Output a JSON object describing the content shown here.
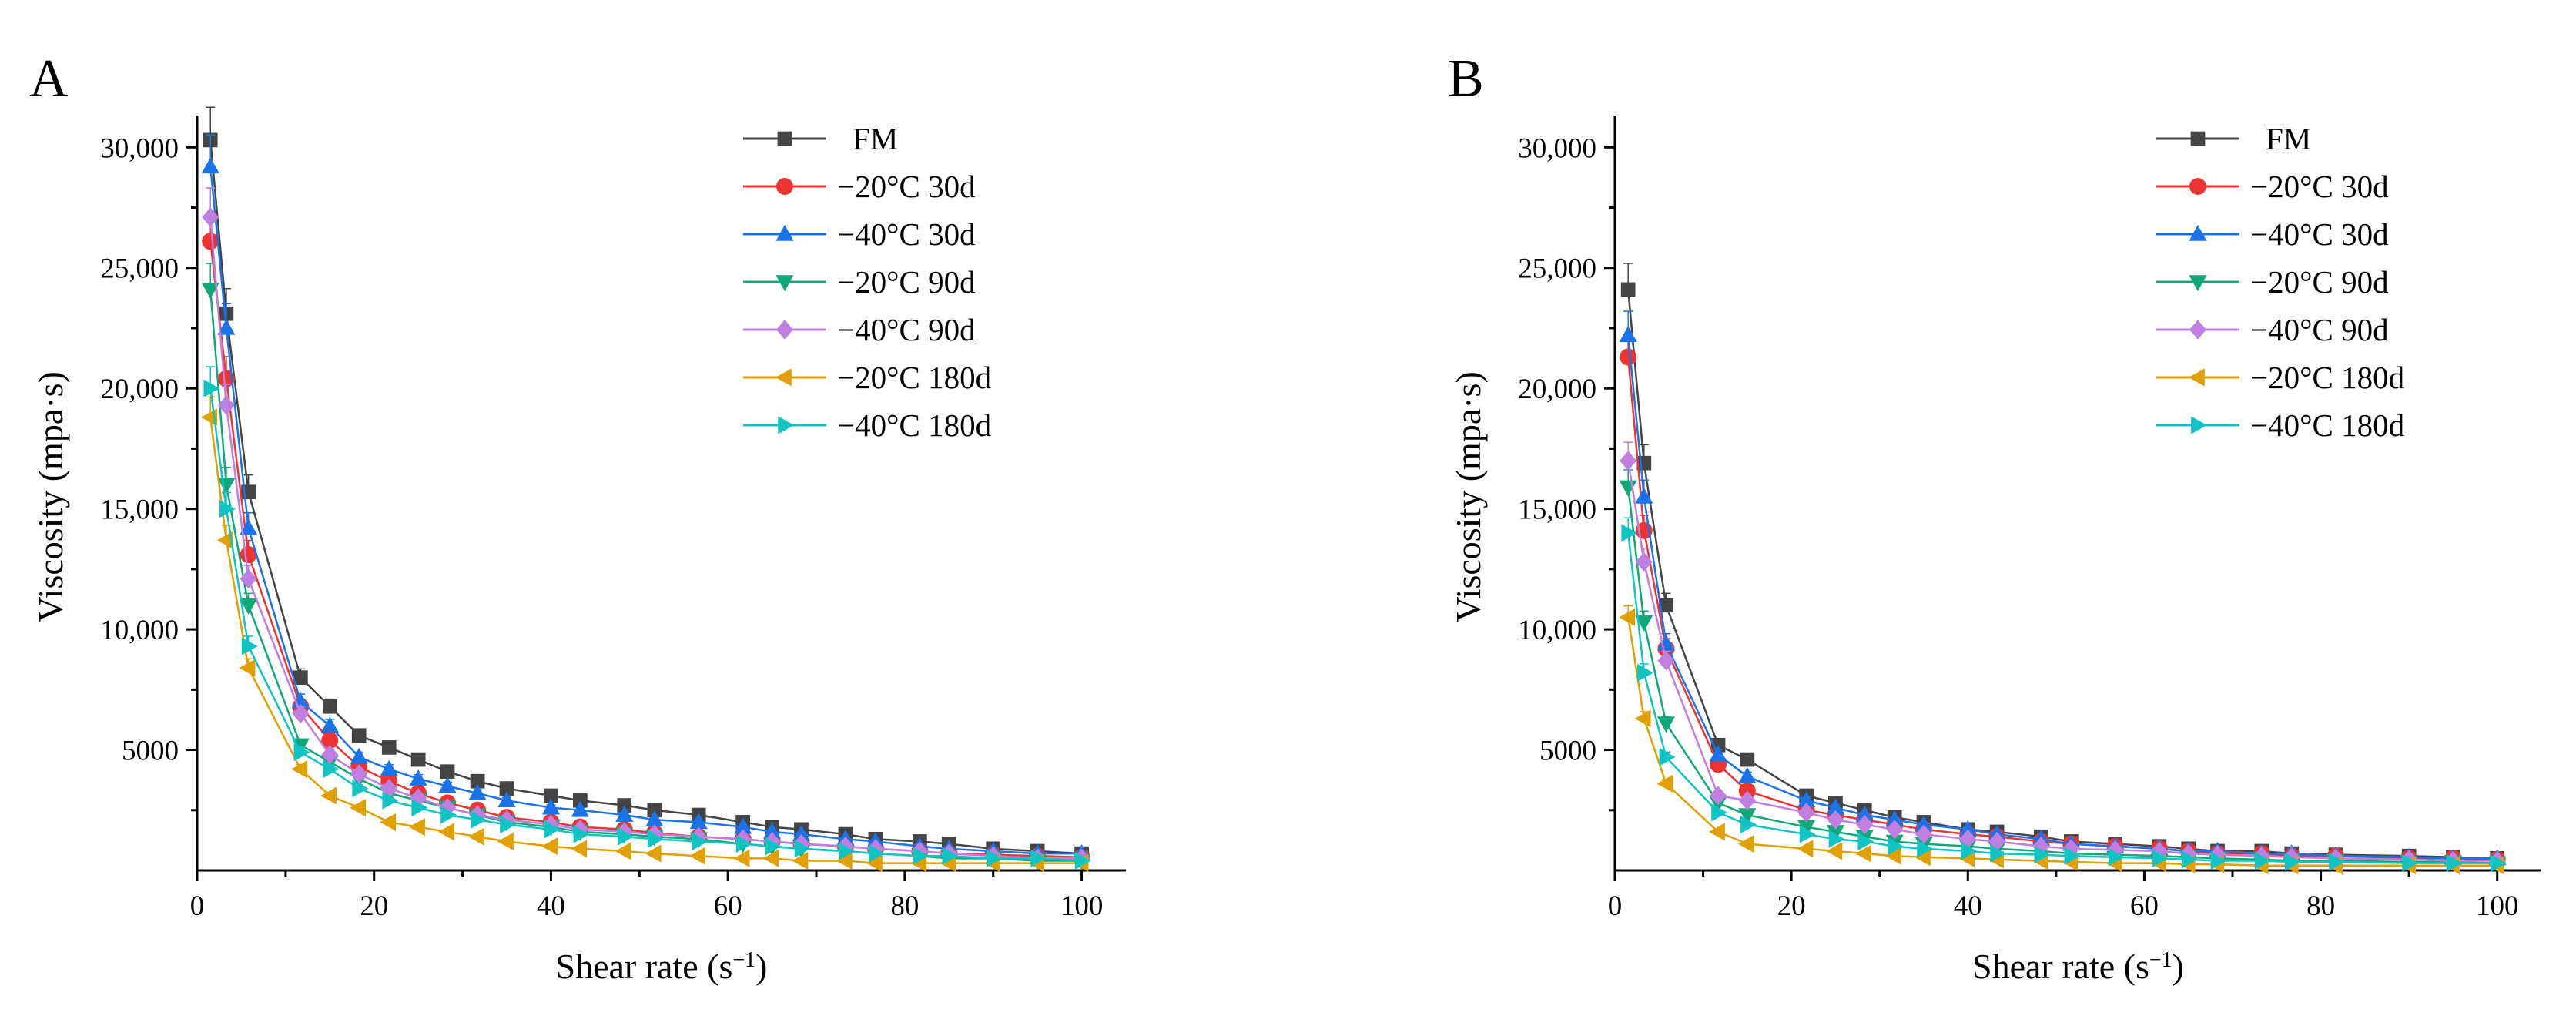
{
  "chart_data": [
    {
      "type": "line",
      "panel_label": "A",
      "xlabel": "Shear rate (s",
      "xlabel_sup": "−1",
      "xlabel_close": ")",
      "ylabel": "Viscosity (mpa·s)",
      "xlim": [
        0,
        105
      ],
      "ylim": [
        0,
        31000
      ],
      "x_ticks": [
        0,
        20,
        40,
        60,
        80,
        100
      ],
      "x_tick_labels": [
        "0",
        "20",
        "40",
        "60",
        "80",
        "100"
      ],
      "y_ticks": [
        5000,
        10000,
        15000,
        20000,
        25000,
        30000
      ],
      "y_tick_labels": [
        "5000",
        "10,000",
        "15,000",
        "20,000",
        "25,000",
        "30,000"
      ],
      "legend_position": "top-right",
      "x": [
        1.5,
        3.3,
        5.8,
        11.7,
        15,
        18.3,
        21.7,
        25,
        28.3,
        31.7,
        35,
        40,
        43.3,
        48.3,
        51.7,
        56.7,
        61.7,
        65,
        68.3,
        73.3,
        76.7,
        81.7,
        85,
        90,
        95,
        100
      ],
      "series": [
        {
          "name": "FM",
          "marker": "square",
          "color": "#444444",
          "values": [
            30300,
            23100,
            15700,
            8000,
            6800,
            5600,
            5100,
            4600,
            4100,
            3700,
            3400,
            3100,
            2900,
            2700,
            2500,
            2300,
            2000,
            1800,
            1700,
            1500,
            1300,
            1200,
            1100,
            900,
            800,
            700
          ]
        },
        {
          "name": "−20°C 30d",
          "marker": "circle",
          "color": "#ee3333",
          "values": [
            26100,
            20400,
            13100,
            6800,
            5400,
            4300,
            3700,
            3200,
            2800,
            2500,
            2200,
            2000,
            1800,
            1700,
            1550,
            1400,
            1300,
            1200,
            1100,
            1000,
            900,
            800,
            700,
            650,
            600,
            550
          ]
        },
        {
          "name": "−40°C 30d",
          "marker": "triangle-up",
          "color": "#1a73e8",
          "values": [
            29200,
            22500,
            14200,
            7000,
            6000,
            4700,
            4200,
            3800,
            3500,
            3200,
            2900,
            2600,
            2500,
            2300,
            2100,
            2000,
            1800,
            1600,
            1500,
            1300,
            1200,
            1000,
            900,
            800,
            700,
            700
          ]
        },
        {
          "name": "−20°C 90d",
          "marker": "triangle-down",
          "color": "#10a878",
          "values": [
            24100,
            16000,
            11000,
            5200,
            4500,
            3800,
            3200,
            2900,
            2600,
            2300,
            2000,
            1800,
            1600,
            1500,
            1400,
            1300,
            1100,
            1000,
            900,
            800,
            700,
            600,
            500,
            500,
            400,
            400
          ]
        },
        {
          "name": "−40°C 90d",
          "marker": "diamond",
          "color": "#c07ee0",
          "values": [
            27100,
            19300,
            12100,
            6500,
            4800,
            4000,
            3400,
            3000,
            2600,
            2300,
            2100,
            1900,
            1700,
            1600,
            1500,
            1400,
            1300,
            1200,
            1100,
            1000,
            900,
            800,
            700,
            600,
            500,
            500
          ]
        },
        {
          "name": "−20°C 180d",
          "marker": "triangle-left",
          "color": "#e0a000",
          "values": [
            18800,
            13700,
            8400,
            4200,
            3100,
            2600,
            2000,
            1800,
            1600,
            1400,
            1200,
            1000,
            900,
            800,
            700,
            600,
            500,
            500,
            400,
            400,
            300,
            300,
            300,
            300,
            300,
            300
          ]
        },
        {
          "name": "−40°C 180d",
          "marker": "triangle-right",
          "color": "#10c4c4",
          "values": [
            20000,
            15000,
            9300,
            4900,
            4200,
            3400,
            2900,
            2600,
            2300,
            2100,
            1900,
            1700,
            1500,
            1400,
            1300,
            1200,
            1100,
            1000,
            900,
            800,
            700,
            600,
            600,
            500,
            500,
            400
          ]
        }
      ]
    },
    {
      "type": "line",
      "panel_label": "B",
      "xlabel": "Shear rate (s",
      "xlabel_sup": "−1",
      "xlabel_close": ")",
      "ylabel": "Viscosity (mpa·s)",
      "xlim": [
        0,
        105
      ],
      "ylim": [
        0,
        31000
      ],
      "x_ticks": [
        0,
        20,
        40,
        60,
        80,
        100
      ],
      "x_tick_labels": [
        "0",
        "20",
        "40",
        "60",
        "80",
        "100"
      ],
      "y_ticks": [
        5000,
        10000,
        15000,
        20000,
        25000,
        30000
      ],
      "y_tick_labels": [
        "5000",
        "10,000",
        "15,000",
        "20,000",
        "25,000",
        "30,000"
      ],
      "legend_position": "top-right",
      "x": [
        1.5,
        3.3,
        5.8,
        11.7,
        15,
        21.7,
        25,
        28.3,
        31.7,
        35,
        40,
        43.3,
        48.3,
        51.7,
        56.7,
        61.7,
        65,
        68.3,
        73.3,
        76.7,
        81.7,
        90,
        95,
        100
      ],
      "series": [
        {
          "name": "FM",
          "marker": "square",
          "color": "#444444",
          "values": [
            24100,
            16900,
            11000,
            5200,
            4600,
            3100,
            2800,
            2500,
            2200,
            2000,
            1700,
            1600,
            1400,
            1200,
            1100,
            1000,
            900,
            800,
            800,
            700,
            650,
            600,
            550,
            500
          ]
        },
        {
          "name": "−20°C 30d",
          "marker": "circle",
          "color": "#ee3333",
          "values": [
            21300,
            14100,
            9200,
            4400,
            3300,
            2500,
            2300,
            2100,
            1900,
            1700,
            1500,
            1400,
            1200,
            1100,
            1000,
            900,
            800,
            700,
            700,
            600,
            600,
            500,
            500,
            450
          ]
        },
        {
          "name": "−40°C 30d",
          "marker": "triangle-up",
          "color": "#1a73e8",
          "values": [
            22200,
            15500,
            9400,
            4800,
            3900,
            2900,
            2600,
            2300,
            2100,
            1900,
            1700,
            1500,
            1300,
            1100,
            1000,
            900,
            800,
            800,
            700,
            700,
            600,
            550,
            500,
            500
          ]
        },
        {
          "name": "−20°C 90d",
          "marker": "triangle-down",
          "color": "#10a878",
          "values": [
            15900,
            10300,
            6100,
            2800,
            2300,
            1800,
            1600,
            1400,
            1200,
            1100,
            1000,
            900,
            800,
            700,
            650,
            600,
            550,
            500,
            450,
            400,
            400,
            350,
            350,
            300
          ]
        },
        {
          "name": "−40°C 90d",
          "marker": "diamond",
          "color": "#c07ee0",
          "values": [
            17000,
            12800,
            8700,
            3100,
            2900,
            2400,
            2100,
            1900,
            1700,
            1500,
            1300,
            1200,
            1000,
            900,
            850,
            800,
            700,
            650,
            600,
            550,
            500,
            450,
            400,
            400
          ]
        },
        {
          "name": "−20°C 180d",
          "marker": "triangle-left",
          "color": "#e0a000",
          "values": [
            10500,
            6300,
            3600,
            1600,
            1100,
            900,
            800,
            700,
            600,
            550,
            500,
            450,
            400,
            350,
            300,
            300,
            250,
            250,
            200,
            200,
            200,
            200,
            200,
            200
          ]
        },
        {
          "name": "−40°C 180d",
          "marker": "triangle-right",
          "color": "#10c4c4",
          "values": [
            14000,
            8200,
            4700,
            2400,
            1900,
            1500,
            1300,
            1200,
            1000,
            900,
            800,
            700,
            650,
            600,
            550,
            500,
            450,
            400,
            400,
            350,
            350,
            300,
            300,
            300
          ]
        }
      ]
    }
  ]
}
